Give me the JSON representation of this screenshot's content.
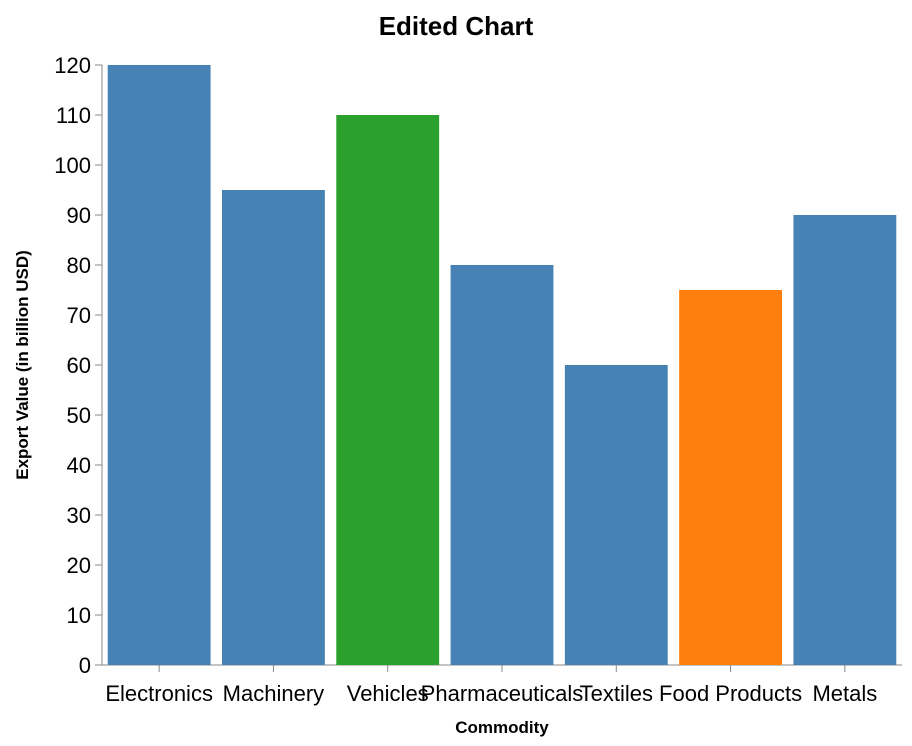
{
  "chart_data": {
    "type": "bar",
    "title": "Edited Chart",
    "xlabel": "Commodity",
    "ylabel": "Export Value (in billion USD)",
    "categories": [
      "Electronics",
      "Machinery",
      "Vehicles",
      "Pharmaceuticals",
      "Textiles",
      "Food Products",
      "Metals"
    ],
    "values": [
      120,
      95,
      110,
      80,
      60,
      75,
      90
    ],
    "colors": [
      "#4682b4",
      "#4682b4",
      "#2ca02c",
      "#4682b4",
      "#4682b4",
      "#ff7f0e",
      "#4682b4"
    ],
    "ylim": [
      0,
      120
    ],
    "yticks": [
      0,
      10,
      20,
      30,
      40,
      50,
      60,
      70,
      80,
      90,
      100,
      110,
      120
    ],
    "grid": false,
    "legend": "none"
  }
}
